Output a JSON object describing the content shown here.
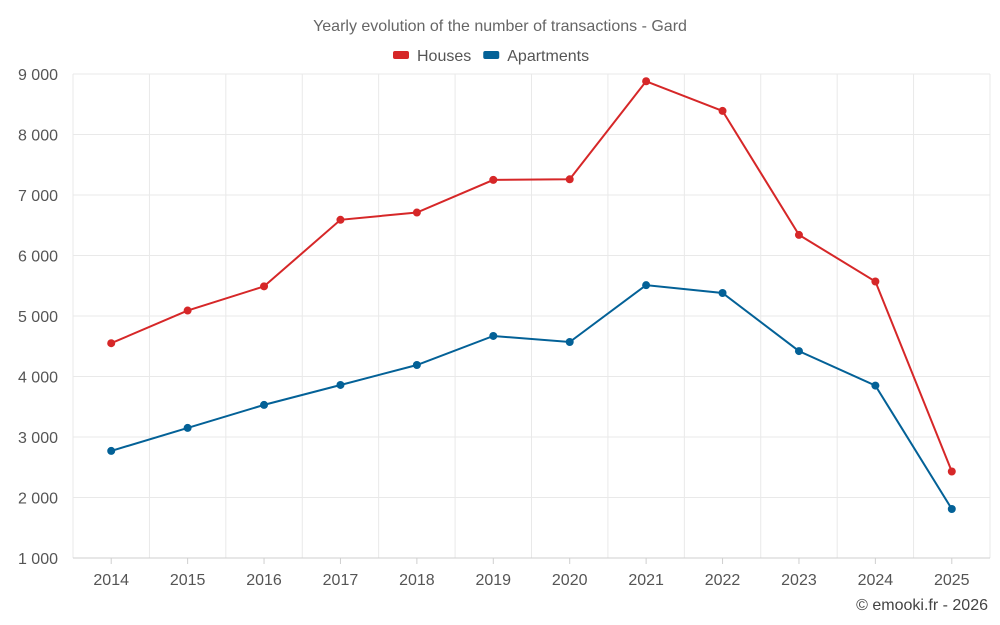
{
  "chart_data": {
    "type": "line",
    "title": "Yearly evolution of the number of transactions - Gard",
    "xlabel": "",
    "ylabel": "",
    "categories": [
      "2014",
      "2015",
      "2016",
      "2017",
      "2018",
      "2019",
      "2020",
      "2021",
      "2022",
      "2023",
      "2024",
      "2025"
    ],
    "ylim": [
      1000,
      9000
    ],
    "yticks": [
      1000,
      2000,
      3000,
      4000,
      5000,
      6000,
      7000,
      8000,
      9000
    ],
    "ytick_labels": [
      "1 000",
      "2 000",
      "3 000",
      "4 000",
      "5 000",
      "6 000",
      "7 000",
      "8 000",
      "9 000"
    ],
    "grid": true,
    "legend_position": "top-center",
    "series": [
      {
        "name": "Houses",
        "color": "#d62728",
        "values": [
          4550,
          5090,
          5490,
          6590,
          6710,
          7250,
          7260,
          8880,
          8390,
          6340,
          5570,
          2430
        ]
      },
      {
        "name": "Apartments",
        "color": "#036197",
        "values": [
          2770,
          3150,
          3530,
          3860,
          4190,
          4670,
          4570,
          5510,
          5380,
          4420,
          3850,
          1810
        ]
      }
    ]
  },
  "credit": "© emooki.fr - 2026"
}
